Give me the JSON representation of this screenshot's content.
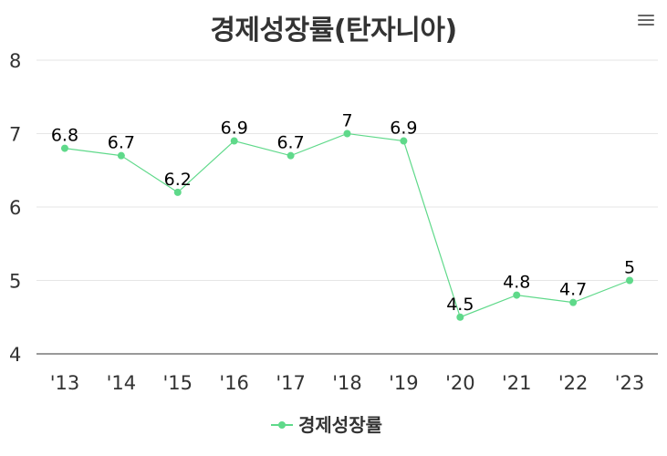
{
  "title": "경제성장률(탄자니아)",
  "menu_icon": "hamburger-menu-icon",
  "colors": {
    "series": "#5fd98a",
    "grid": "#e6e6e6",
    "axis": "#333333"
  },
  "chart_data": {
    "type": "line",
    "title": "경제성장률(탄자니아)",
    "categories": [
      "'13",
      "'14",
      "'15",
      "'16",
      "'17",
      "'18",
      "'19",
      "'20",
      "'21",
      "'22",
      "'23"
    ],
    "series": [
      {
        "name": "경제성장률",
        "values": [
          6.8,
          6.7,
          6.2,
          6.9,
          6.7,
          7,
          6.9,
          4.5,
          4.8,
          4.7,
          5
        ]
      }
    ],
    "yticks": [
      "4",
      "5",
      "6",
      "7",
      "8"
    ],
    "ylim": [
      4,
      8
    ],
    "grid": true,
    "legend": "bottom-center",
    "data_labels": true
  }
}
